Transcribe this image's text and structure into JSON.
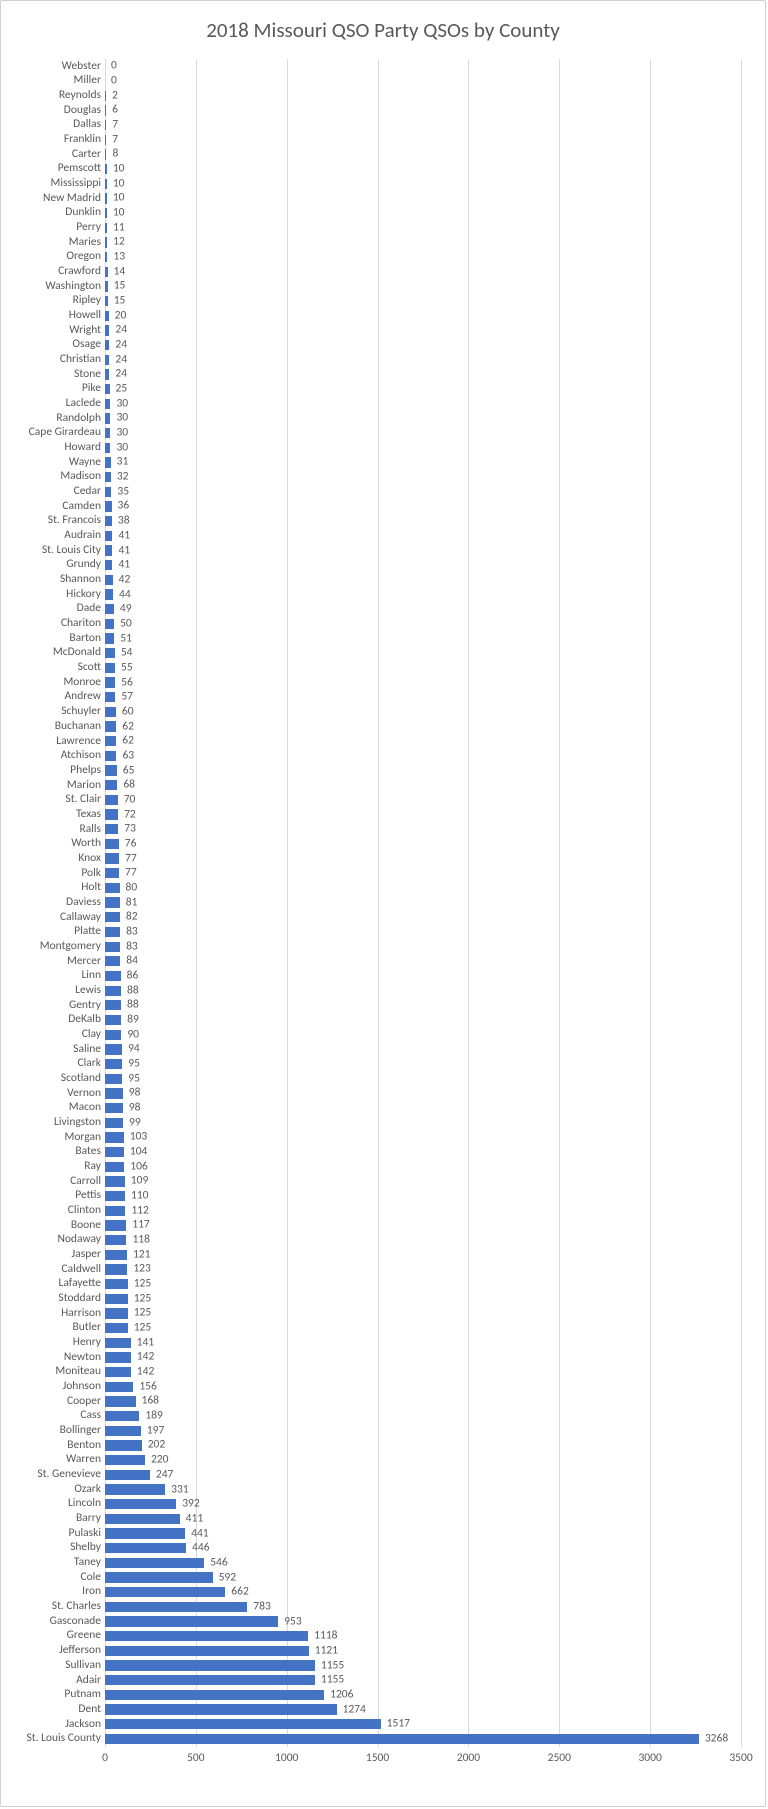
{
  "chart": {
    "type": "bar",
    "title": "2018 Missouri QSO Party QSOs by County",
    "title_fontsize": 21,
    "title_color": "#595959",
    "background_color": "#ffffff",
    "border_color": "#d0d0d0",
    "bar_color": "#4472c4",
    "grid_color": "#d9d9d9",
    "label_color": "#595959",
    "label_fontsize": 11.5,
    "x_axis": {
      "min": 0,
      "max": 3500,
      "ticks": [
        0,
        500,
        1000,
        1500,
        2000,
        2500,
        3000,
        3500
      ]
    },
    "categories": [
      "Webster",
      "Miller",
      "Reynolds",
      "Douglas",
      "Dallas",
      "Franklin",
      "Carter",
      "Pemscott",
      "Mississippi",
      "New Madrid",
      "Dunklin",
      "Perry",
      "Maries",
      "Oregon",
      "Crawford",
      "Washington",
      "Ripley",
      "Howell",
      "Wright",
      "Osage",
      "Christian",
      "Stone",
      "Pike",
      "Laclede",
      "Randolph",
      "Cape Girardeau",
      "Howard",
      "Wayne",
      "Madison",
      "Cedar",
      "Camden",
      "St. Francois",
      "Audrain",
      "St. Louis City",
      "Grundy",
      "Shannon",
      "Hickory",
      "Dade",
      "Chariton",
      "Barton",
      "McDonald",
      "Scott",
      "Monroe",
      "Andrew",
      "Schuyler",
      "Buchanan",
      "Lawrence",
      "Atchison",
      "Phelps",
      "Marion",
      "St. Clair",
      "Texas",
      "Ralls",
      "Worth",
      "Knox",
      "Polk",
      "Holt",
      "Daviess",
      "Callaway",
      "Platte",
      "Montgomery",
      "Mercer",
      "Linn",
      "Lewis",
      "Gentry",
      "DeKalb",
      "Clay",
      "Saline",
      "Clark",
      "Scotland",
      "Vernon",
      "Macon",
      "Livingston",
      "Morgan",
      "Bates",
      "Ray",
      "Carroll",
      "Pettis",
      "Clinton",
      "Boone",
      "Nodaway",
      "Jasper",
      "Caldwell",
      "Lafayette",
      "Stoddard",
      "Harrison",
      "Butler",
      "Henry",
      "Newton",
      "Moniteau",
      "Johnson",
      "Cooper",
      "Cass",
      "Bollinger",
      "Benton",
      "Warren",
      "St. Genevieve",
      "Ozark",
      "Lincoln",
      "Barry",
      "Pulaski",
      "Shelby",
      "Taney",
      "Cole",
      "Iron",
      "St. Charles",
      "Gasconade",
      "Greene",
      "Jefferson",
      "Sullivan",
      "Adair",
      "Putnam",
      "Dent",
      "Jackson",
      "St. Louis County"
    ],
    "values": [
      0,
      0,
      2,
      6,
      7,
      7,
      8,
      10,
      10,
      10,
      10,
      11,
      12,
      13,
      14,
      15,
      15,
      20,
      24,
      24,
      24,
      24,
      25,
      30,
      30,
      30,
      30,
      31,
      32,
      35,
      36,
      38,
      41,
      41,
      41,
      42,
      44,
      49,
      50,
      51,
      54,
      55,
      56,
      57,
      60,
      62,
      62,
      63,
      65,
      68,
      70,
      72,
      73,
      76,
      77,
      77,
      80,
      81,
      82,
      83,
      83,
      84,
      86,
      88,
      88,
      89,
      90,
      94,
      95,
      95,
      98,
      98,
      99,
      103,
      104,
      106,
      109,
      110,
      112,
      117,
      118,
      121,
      123,
      125,
      125,
      125,
      125,
      141,
      142,
      142,
      156,
      168,
      189,
      197,
      202,
      220,
      247,
      331,
      392,
      411,
      441,
      446,
      546,
      592,
      662,
      783,
      953,
      1118,
      1121,
      1155,
      1155,
      1206,
      1274,
      1517,
      3268
    ]
  }
}
